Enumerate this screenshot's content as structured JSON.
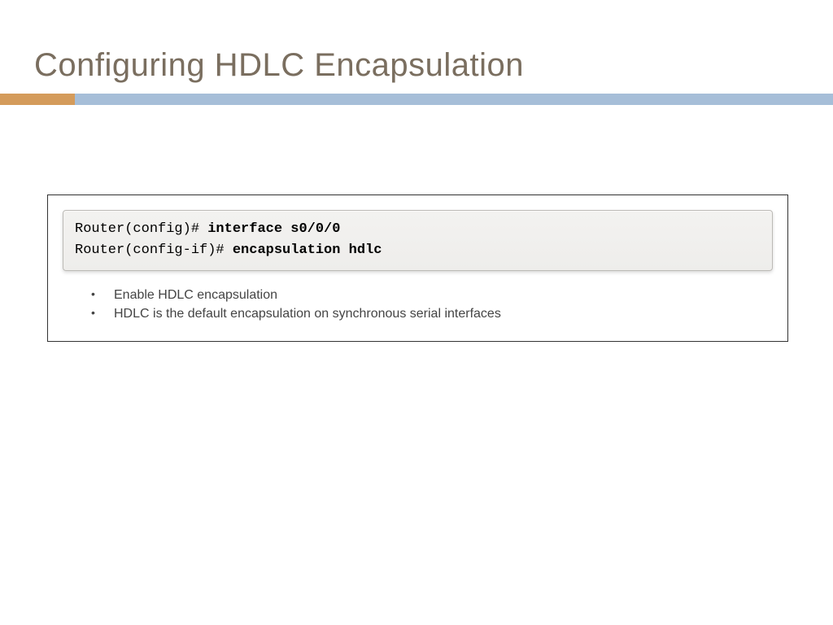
{
  "title": "Configuring HDLC Encapsulation",
  "colors": {
    "title_text": "#7a6e5f",
    "accent_orange": "#d49b5b",
    "accent_blue": "#a6bed8",
    "terminal_bg_top": "#f3f2f0",
    "terminal_bg_bottom": "#eeedeb",
    "terminal_border": "#bcbab6",
    "content_border": "#333333",
    "body_text": "#444444"
  },
  "terminal": {
    "line1_prompt": "Router(config)# ",
    "line1_cmd": "interface s0/0/0",
    "line2_prompt": "Router(config-if)# ",
    "line2_cmd": "encapsulation hdlc"
  },
  "bullets": {
    "item1": "Enable HDLC encapsulation",
    "item2": "HDLC is the default encapsulation on synchronous serial interfaces"
  }
}
